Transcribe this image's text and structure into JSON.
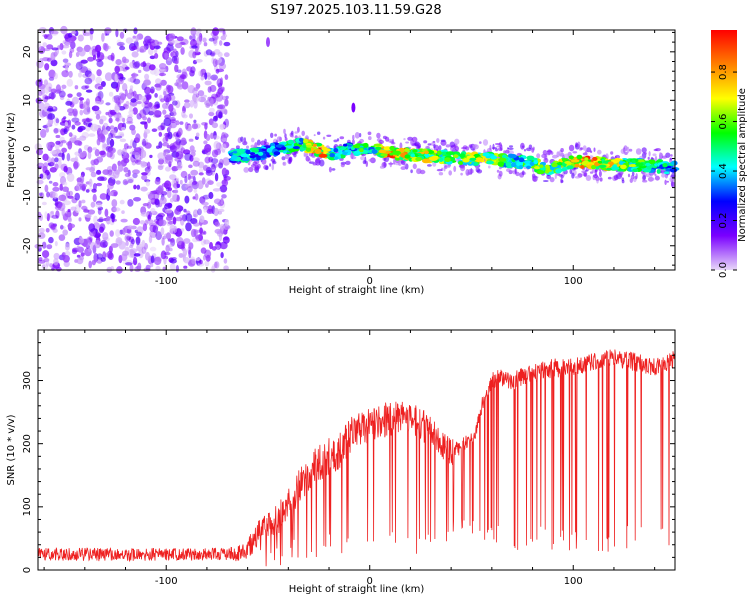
{
  "figure": {
    "title": "S197.2025.103.11.59.G28"
  },
  "chart_data": [
    {
      "type": "heatmap",
      "title": "",
      "xlabel": "Height of straight line (km)",
      "ylabel": "Frequency (Hz)",
      "xlim": [
        -163,
        150
      ],
      "ylim": [
        -25,
        24.5
      ],
      "x_ticks": [
        -100,
        0,
        100
      ],
      "x_tick_labels": [
        "-100",
        "0",
        "100"
      ],
      "y_ticks": [
        -20,
        -10,
        0,
        10,
        20
      ],
      "y_tick_labels": [
        "-20",
        "-10",
        "0",
        "10",
        "20"
      ],
      "grid": false,
      "colorbar": {
        "label": "Normalized spectral amplitude",
        "range": [
          0.0,
          0.97
        ],
        "ticks": [
          0.0,
          0.2,
          0.4,
          0.6,
          0.8
        ],
        "tick_labels": [
          "0.0",
          "0.2",
          "0.4",
          "0.6",
          "0.8"
        ],
        "colormap": "rainbow (violet-blue-cyan-green-yellow-orange-red)",
        "colors": [
          "#e8d8f8",
          "#7a00ff",
          "#0000ff",
          "#00ffff",
          "#00ff00",
          "#ffff00",
          "#ff8000",
          "#ff0000"
        ]
      },
      "regions": [
        {
          "name": "noise",
          "x_range": [
            -163,
            -70
          ],
          "freq_range": [
            -25,
            24.5
          ],
          "amplitude_range": [
            0.0,
            0.2
          ]
        },
        {
          "name": "carrier",
          "x_range": [
            -70,
            150
          ],
          "freq_range": [
            -5,
            4
          ],
          "amplitude_range": [
            0.2,
            0.95
          ]
        }
      ],
      "carrier_track": {
        "x": [
          -68,
          -60,
          -50,
          -40,
          -34,
          -28,
          -22,
          -18,
          -12,
          -5,
          0,
          10,
          20,
          30,
          40,
          50,
          60,
          70,
          80,
          85,
          90,
          100,
          110,
          120,
          130,
          140,
          150
        ],
        "freq": [
          -1.5,
          -1.5,
          -0.5,
          0.5,
          0.8,
          0.2,
          -0.5,
          -1.0,
          -0.3,
          0.0,
          0.0,
          -0.8,
          -1.2,
          -1.5,
          -1.8,
          -2.0,
          -2.2,
          -2.5,
          -3.0,
          -4.0,
          -4.0,
          -2.5,
          -3.0,
          -3.2,
          -3.4,
          -3.6,
          -4.0
        ],
        "amplitude": [
          0.45,
          0.5,
          0.45,
          0.5,
          0.6,
          0.95,
          0.85,
          0.5,
          0.5,
          0.6,
          0.55,
          0.9,
          0.8,
          0.75,
          0.6,
          0.7,
          0.7,
          0.55,
          0.65,
          0.7,
          0.6,
          0.85,
          0.9,
          0.75,
          0.65,
          0.55,
          0.5
        ]
      },
      "outliers": [
        {
          "x": -8,
          "freq": 8.5,
          "amplitude": 0.15
        },
        {
          "x": -50,
          "freq": 22,
          "amplitude": 0.1
        }
      ]
    },
    {
      "type": "line",
      "title": "",
      "xlabel": "Height of straight line (km)",
      "ylabel": "SNR (10 * v/v)",
      "xlim": [
        -163,
        150
      ],
      "ylim": [
        0,
        380
      ],
      "x_ticks": [
        -100,
        0,
        100
      ],
      "x_tick_labels": [
        "-100",
        "0",
        "100"
      ],
      "y_ticks": [
        0,
        100,
        200,
        300
      ],
      "y_tick_labels": [
        "0",
        "100",
        "200",
        "300"
      ],
      "grid": false,
      "line_color": "#ee2020",
      "series": [
        {
          "x": [
            -163,
            -140,
            -120,
            -100,
            -80,
            -70,
            -62,
            -55,
            -45,
            -35,
            -25,
            -15,
            -8,
            0,
            10,
            20,
            25,
            30,
            35,
            40,
            45,
            50,
            52,
            55,
            60,
            65,
            70,
            80,
            90,
            100,
            110,
            120,
            130,
            140,
            150
          ],
          "y": [
            25,
            25,
            24,
            25,
            25,
            24,
            28,
            55,
            80,
            130,
            170,
            190,
            220,
            230,
            240,
            245,
            230,
            220,
            200,
            185,
            195,
            210,
            215,
            260,
            300,
            305,
            300,
            310,
            320,
            320,
            330,
            335,
            330,
            320,
            335
          ],
          "spread": [
            20,
            22,
            20,
            20,
            20,
            20,
            30,
            45,
            50,
            55,
            60,
            60,
            60,
            55,
            55,
            55,
            55,
            50,
            50,
            45,
            25,
            20,
            20,
            25,
            25,
            30,
            30,
            30,
            30,
            30,
            30,
            30,
            30,
            30,
            30
          ],
          "dropout_min": [
            0,
            0,
            0,
            0,
            0,
            0,
            0,
            0,
            5,
            10,
            20,
            20,
            20,
            15,
            20,
            20,
            25,
            25,
            35,
            40,
            60,
            40,
            35,
            35,
            35,
            30,
            30,
            30,
            30,
            25,
            25,
            30,
            30,
            30,
            40
          ]
        }
      ]
    }
  ]
}
